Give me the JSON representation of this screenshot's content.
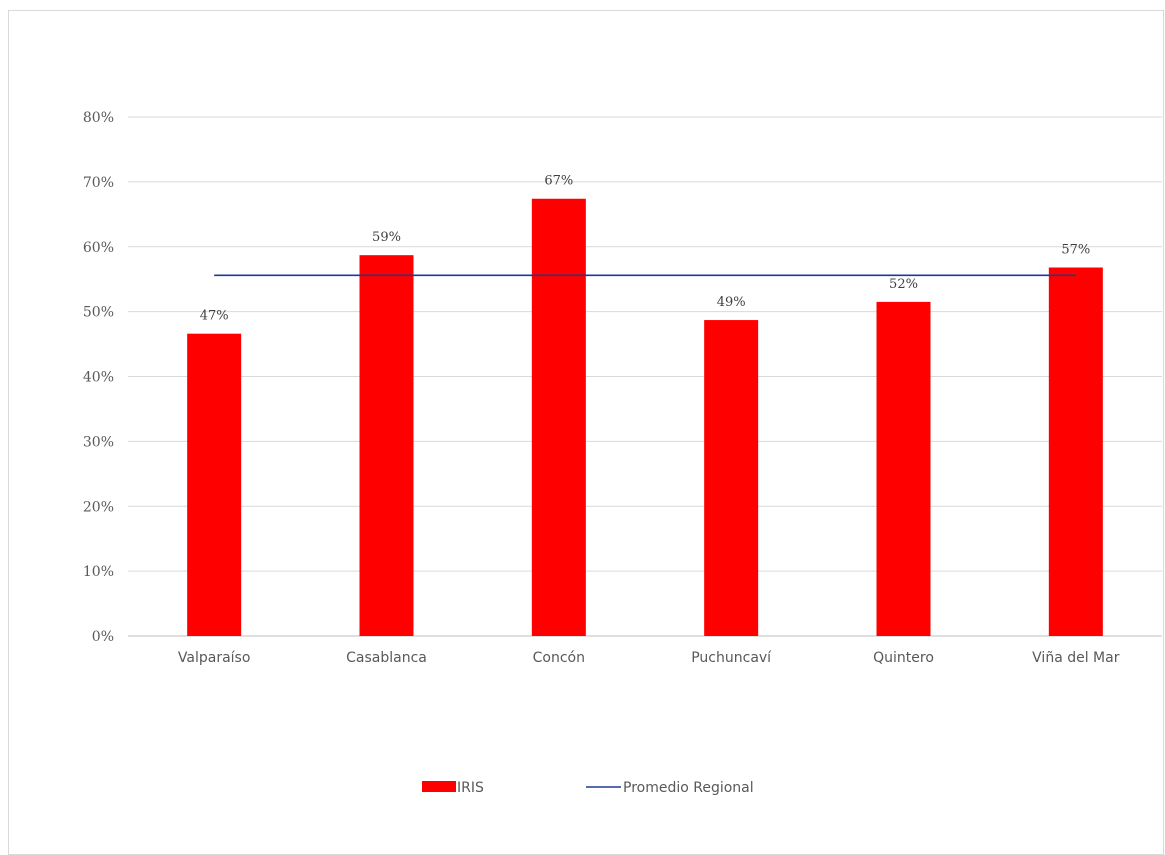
{
  "chart_data": {
    "type": "bar",
    "categories": [
      "Valparaíso",
      "Casablanca",
      "Concón",
      "Puchuncaví",
      "Quintero",
      "Viña del Mar"
    ],
    "series": [
      {
        "name": "IRIS",
        "type": "bar",
        "color": "#ff0000",
        "values": [
          0.466,
          0.587,
          0.674,
          0.487,
          0.515,
          0.568
        ],
        "data_labels": [
          "47%",
          "59%",
          "67%",
          "49%",
          "52%",
          "57%"
        ]
      },
      {
        "name": "Promedio Regional",
        "type": "line",
        "color": "#1f3a93",
        "values": [
          0.556,
          0.556,
          0.556,
          0.556,
          0.556,
          0.556
        ]
      }
    ],
    "ylim": [
      0,
      0.8
    ],
    "yticks": [
      0,
      0.1,
      0.2,
      0.3,
      0.4,
      0.5,
      0.6,
      0.7,
      0.8
    ],
    "ytick_labels": [
      "0%",
      "10%",
      "20%",
      "30%",
      "40%",
      "50%",
      "60%",
      "70%",
      "80%"
    ],
    "grid": true,
    "legend_position": "bottom",
    "title": "",
    "xlabel": "",
    "ylabel": ""
  }
}
